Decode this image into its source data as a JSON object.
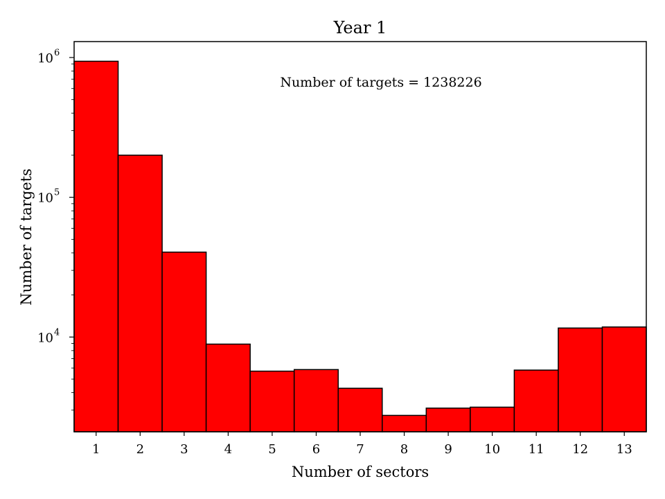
{
  "chart_data": {
    "type": "bar",
    "title": "Year 1",
    "xlabel": "Number of sectors",
    "ylabel": "Number of targets",
    "annotation": "Number of targets = 1238226",
    "categories": [
      "1",
      "2",
      "3",
      "4",
      "5",
      "6",
      "7",
      "8",
      "9",
      "10",
      "11",
      "12",
      "13"
    ],
    "values": [
      940000,
      200000,
      40500,
      8900,
      5700,
      5850,
      4300,
      2750,
      3100,
      3150,
      5800,
      11600,
      11800
    ],
    "yscale": "log",
    "ylim": [
      2100,
      1300000
    ],
    "yticks": [
      {
        "value": 10000,
        "base": "10",
        "exp": "4"
      },
      {
        "value": 100000,
        "base": "10",
        "exp": "5"
      },
      {
        "value": 1000000,
        "base": "10",
        "exp": "6"
      }
    ],
    "bar_color": "#ff0000",
    "edge_color": "#000000",
    "grid": false,
    "legend": false
  }
}
